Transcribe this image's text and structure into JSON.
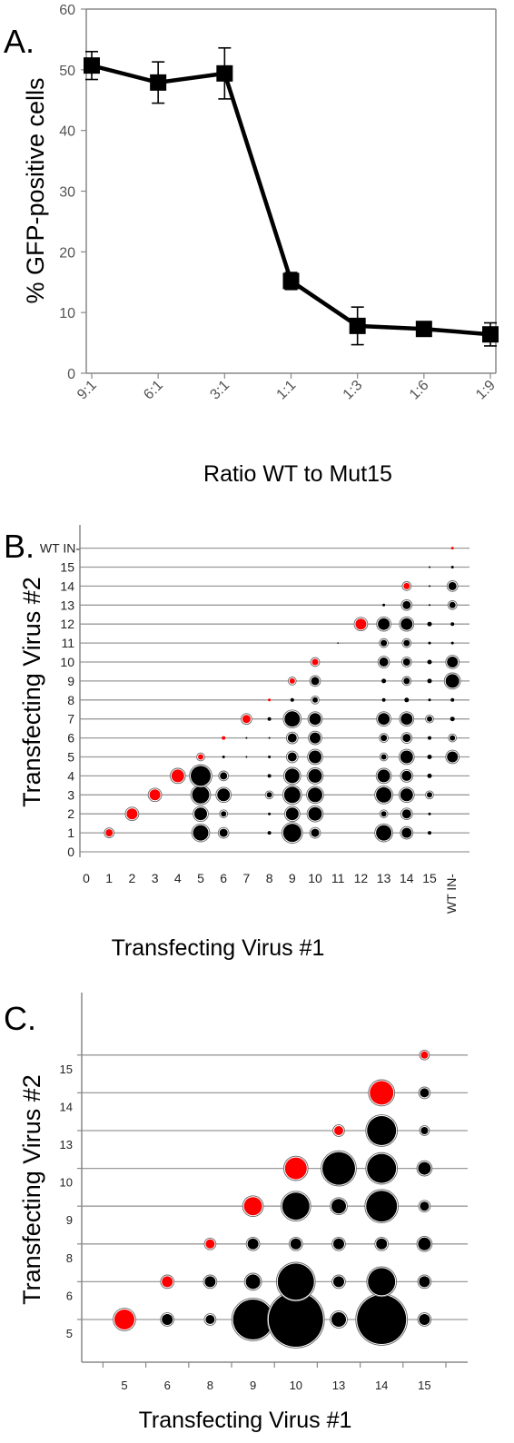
{
  "colors": {
    "red": "#ff0000",
    "black": "#000000",
    "grid": "#9a9a9a",
    "axis": "#888888"
  },
  "panels": [
    {
      "label": "A."
    },
    {
      "label": "B."
    },
    {
      "label": "C."
    }
  ],
  "chart_data": [
    {
      "type": "line",
      "panel": "A.",
      "xlabel": "Ratio WT to Mut15",
      "ylabel": "% GFP-positive cells",
      "categories": [
        "9:1",
        "6:1",
        "3:1",
        "1:1",
        "1:3",
        "1:6",
        "1:9"
      ],
      "values": [
        50.7,
        47.9,
        49.4,
        15.2,
        7.8,
        7.3,
        6.4
      ],
      "errors": [
        2.3,
        3.4,
        4.2,
        1.4,
        3.1,
        1.0,
        1.9
      ],
      "ylim": [
        0,
        60
      ],
      "yticks": [
        0,
        10,
        20,
        30,
        40,
        50,
        60
      ]
    },
    {
      "type": "scatter",
      "panel": "B.",
      "xlabel": "Transfecting Virus #1",
      "ylabel": "Transfecting Virus #2",
      "categories": [
        "0",
        "1",
        "2",
        "3",
        "4",
        "5",
        "6",
        "7",
        "8",
        "9",
        "10",
        "11",
        "12",
        "13",
        "14",
        "15",
        "WT IN-"
      ],
      "y_categories": [
        "0",
        "1",
        "2",
        "3",
        "4",
        "5",
        "6",
        "7",
        "8",
        "9",
        "10",
        "11",
        "12",
        "13",
        "14",
        "15",
        "WT IN-"
      ],
      "points": [
        [
          1,
          1,
          4,
          "r"
        ],
        [
          2,
          2,
          6,
          "r"
        ],
        [
          3,
          3,
          6,
          "r"
        ],
        [
          4,
          4,
          7,
          "r"
        ],
        [
          5,
          5,
          3,
          "r"
        ],
        [
          6,
          6,
          2,
          "r"
        ],
        [
          7,
          7,
          4.5,
          "r"
        ],
        [
          8,
          8,
          1.5,
          "r"
        ],
        [
          9,
          9,
          3,
          "r"
        ],
        [
          10,
          10,
          3.5,
          "r"
        ],
        [
          12,
          12,
          6,
          "r"
        ],
        [
          13,
          12,
          1.5,
          "r"
        ],
        [
          14,
          14,
          3.5,
          "r"
        ],
        [
          16,
          16,
          1.5,
          "r"
        ],
        [
          5,
          1,
          8.5,
          "k"
        ],
        [
          5,
          2,
          7,
          "k"
        ],
        [
          5,
          3,
          9.5,
          "k"
        ],
        [
          5,
          4,
          11,
          "k"
        ],
        [
          6,
          1,
          4.5,
          "k"
        ],
        [
          6,
          2,
          3,
          "k"
        ],
        [
          6,
          3,
          7,
          "k"
        ],
        [
          6,
          4,
          4,
          "k"
        ],
        [
          6,
          5,
          1.5,
          "k"
        ],
        [
          7,
          6,
          1,
          "k"
        ],
        [
          7,
          5,
          1,
          "k"
        ],
        [
          8,
          1,
          2,
          "k"
        ],
        [
          8,
          2,
          1.5,
          "k"
        ],
        [
          8,
          3,
          3,
          "k"
        ],
        [
          8,
          4,
          2,
          "k"
        ],
        [
          8,
          5,
          1.5,
          "k"
        ],
        [
          8,
          6,
          1,
          "k"
        ],
        [
          8,
          7,
          2,
          "k"
        ],
        [
          9,
          1,
          10,
          "k"
        ],
        [
          9,
          2,
          7,
          "k"
        ],
        [
          9,
          3,
          9,
          "k"
        ],
        [
          9,
          4,
          8,
          "k"
        ],
        [
          9,
          5,
          5,
          "k"
        ],
        [
          9,
          6,
          5,
          "k"
        ],
        [
          9,
          7,
          8.5,
          "k"
        ],
        [
          9,
          8,
          2,
          "k"
        ],
        [
          10,
          1,
          4.5,
          "k"
        ],
        [
          10,
          2,
          7.5,
          "k"
        ],
        [
          10,
          3,
          8,
          "k"
        ],
        [
          10,
          4,
          7.5,
          "k"
        ],
        [
          10,
          5,
          7,
          "k"
        ],
        [
          10,
          6,
          6,
          "k"
        ],
        [
          10,
          7,
          6.5,
          "k"
        ],
        [
          10,
          8,
          3,
          "k"
        ],
        [
          10,
          9,
          4.5,
          "k"
        ],
        [
          11,
          11,
          0.8,
          "k"
        ],
        [
          13,
          1,
          8.5,
          "k"
        ],
        [
          13,
          2,
          3,
          "k"
        ],
        [
          13,
          3,
          8.5,
          "k"
        ],
        [
          13,
          4,
          7,
          "k"
        ],
        [
          13,
          5,
          3,
          "k"
        ],
        [
          13,
          6,
          3.5,
          "k"
        ],
        [
          13,
          7,
          6.5,
          "k"
        ],
        [
          13,
          8,
          2,
          "k"
        ],
        [
          13,
          9,
          2.5,
          "k"
        ],
        [
          13,
          10,
          5,
          "k"
        ],
        [
          13,
          11,
          3.5,
          "k"
        ],
        [
          13,
          12,
          6.5,
          "k"
        ],
        [
          13,
          13,
          1.5,
          "k"
        ],
        [
          14,
          1,
          5.5,
          "k"
        ],
        [
          14,
          2,
          5,
          "k"
        ],
        [
          14,
          3,
          7,
          "k"
        ],
        [
          14,
          4,
          5.5,
          "k"
        ],
        [
          14,
          5,
          7,
          "k"
        ],
        [
          14,
          6,
          4.5,
          "k"
        ],
        [
          14,
          7,
          6.5,
          "k"
        ],
        [
          14,
          8,
          2.5,
          "k"
        ],
        [
          14,
          9,
          3.5,
          "k"
        ],
        [
          14,
          10,
          4,
          "k"
        ],
        [
          14,
          11,
          3.5,
          "k"
        ],
        [
          14,
          12,
          6.5,
          "k"
        ],
        [
          14,
          13,
          4.5,
          "k"
        ],
        [
          15,
          1,
          2,
          "k"
        ],
        [
          15,
          2,
          1.5,
          "k"
        ],
        [
          15,
          3,
          3,
          "k"
        ],
        [
          15,
          4,
          2.5,
          "k"
        ],
        [
          15,
          5,
          2.5,
          "k"
        ],
        [
          15,
          6,
          2,
          "k"
        ],
        [
          15,
          7,
          3,
          "k"
        ],
        [
          15,
          8,
          1.5,
          "k"
        ],
        [
          15,
          9,
          2.5,
          "k"
        ],
        [
          15,
          10,
          2.5,
          "k"
        ],
        [
          15,
          11,
          1.5,
          "k"
        ],
        [
          15,
          12,
          2.5,
          "k"
        ],
        [
          15,
          13,
          1,
          "k"
        ],
        [
          15,
          14,
          1,
          "k"
        ],
        [
          15,
          15,
          1,
          "k"
        ],
        [
          16,
          5,
          6,
          "k"
        ],
        [
          16,
          6,
          3,
          "k"
        ],
        [
          16,
          7,
          2.5,
          "k"
        ],
        [
          16,
          8,
          2,
          "k"
        ],
        [
          16,
          9,
          7.5,
          "k"
        ],
        [
          16,
          10,
          6,
          "k"
        ],
        [
          16,
          11,
          1.5,
          "k"
        ],
        [
          16,
          12,
          2,
          "k"
        ],
        [
          16,
          13,
          3.5,
          "k"
        ],
        [
          16,
          14,
          4.5,
          "k"
        ],
        [
          16,
          15,
          1.5,
          "k"
        ]
      ]
    },
    {
      "type": "scatter",
      "panel": "C.",
      "xlabel": "Transfecting Virus #1",
      "ylabel": "Transfecting Virus #2",
      "categories": [
        "5",
        "6",
        "8",
        "9",
        "10",
        "13",
        "14",
        "15"
      ],
      "y_categories": [
        "5",
        "6",
        "8",
        "9",
        "10",
        "13",
        "14",
        "15"
      ],
      "points": [
        [
          0,
          0,
          11,
          "r"
        ],
        [
          1,
          1,
          6,
          "r"
        ],
        [
          2,
          2,
          5,
          "r"
        ],
        [
          3,
          3,
          10,
          "r"
        ],
        [
          4,
          4,
          12,
          "r"
        ],
        [
          5,
          5,
          5,
          "r"
        ],
        [
          6,
          6,
          13,
          "r"
        ],
        [
          7,
          7,
          4,
          "r"
        ],
        [
          1,
          0,
          6,
          "k"
        ],
        [
          2,
          0,
          5,
          "k"
        ],
        [
          2,
          1,
          6,
          "k"
        ],
        [
          3,
          0,
          22,
          "k"
        ],
        [
          3,
          1,
          8,
          "k"
        ],
        [
          3,
          2,
          6,
          "k"
        ],
        [
          4,
          0,
          30,
          "k"
        ],
        [
          4,
          1,
          20,
          "k"
        ],
        [
          4,
          2,
          6,
          "k"
        ],
        [
          4,
          3,
          15,
          "k"
        ],
        [
          5,
          0,
          8,
          "k"
        ],
        [
          5,
          1,
          6,
          "k"
        ],
        [
          5,
          2,
          6,
          "k"
        ],
        [
          5,
          3,
          8,
          "k"
        ],
        [
          5,
          4,
          18,
          "k"
        ],
        [
          6,
          0,
          27,
          "k"
        ],
        [
          6,
          1,
          15,
          "k"
        ],
        [
          6,
          2,
          6,
          "k"
        ],
        [
          6,
          3,
          17,
          "k"
        ],
        [
          6,
          4,
          16,
          "k"
        ],
        [
          6,
          5,
          16,
          "k"
        ],
        [
          7,
          0,
          6,
          "k"
        ],
        [
          7,
          1,
          6,
          "k"
        ],
        [
          7,
          2,
          7,
          "k"
        ],
        [
          7,
          3,
          5,
          "k"
        ],
        [
          7,
          4,
          7,
          "k"
        ],
        [
          7,
          5,
          4,
          "k"
        ],
        [
          7,
          6,
          5,
          "k"
        ]
      ]
    }
  ]
}
